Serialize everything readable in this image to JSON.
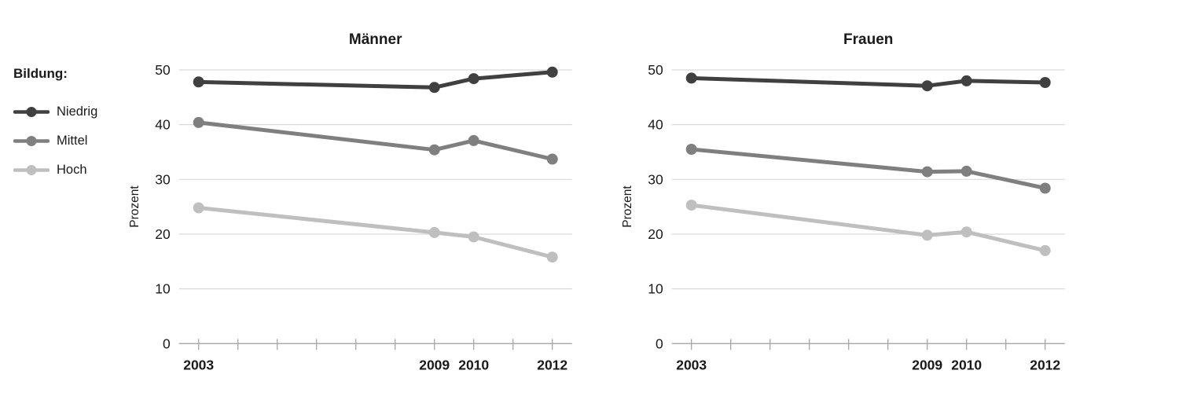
{
  "style": {
    "background": "#ffffff",
    "grid_color": "#d9d9d9",
    "axis_color": "#a6a6a6",
    "text_color": "#1a1a1a",
    "series_colors": {
      "niedrig": "#404040",
      "mittel": "#7f7f7f",
      "hoch": "#bfbfbf"
    }
  },
  "legend": {
    "title": "Bildung:",
    "position": "outside-left",
    "items": [
      {
        "label": "Niedrig",
        "color": "#404040"
      },
      {
        "label": "Mittel",
        "color": "#7f7f7f"
      },
      {
        "label": "Hoch",
        "color": "#bfbfbf"
      }
    ]
  },
  "chart_data": [
    {
      "type": "line",
      "title": "Männer",
      "xlabel": "",
      "ylabel": "Prozent",
      "x": [
        2003,
        2009,
        2010,
        2012
      ],
      "x_tick_labels": [
        "2003",
        "2009",
        "2010",
        "2012"
      ],
      "axis_years": [
        2003,
        2004,
        2005,
        2006,
        2007,
        2008,
        2009,
        2010,
        2011,
        2012
      ],
      "xlim": [
        2002.5,
        2012.5
      ],
      "ylim": [
        0,
        50
      ],
      "yticks": [
        0,
        10,
        20,
        30,
        40,
        50
      ],
      "grid": true,
      "marker": "circle",
      "series": [
        {
          "name": "Niedrig",
          "color": "#404040",
          "values": [
            47.8,
            46.8,
            48.4,
            49.6
          ]
        },
        {
          "name": "Mittel",
          "color": "#7f7f7f",
          "values": [
            40.4,
            35.4,
            37.1,
            33.7
          ]
        },
        {
          "name": "Hoch",
          "color": "#bfbfbf",
          "values": [
            24.8,
            20.3,
            19.5,
            15.8
          ]
        }
      ]
    },
    {
      "type": "line",
      "title": "Frauen",
      "xlabel": "",
      "ylabel": "Prozent",
      "x": [
        2003,
        2009,
        2010,
        2012
      ],
      "x_tick_labels": [
        "2003",
        "2009",
        "2010",
        "2012"
      ],
      "axis_years": [
        2003,
        2004,
        2005,
        2006,
        2007,
        2008,
        2009,
        2010,
        2011,
        2012
      ],
      "xlim": [
        2002.5,
        2012.5
      ],
      "ylim": [
        0,
        50
      ],
      "yticks": [
        0,
        10,
        20,
        30,
        40,
        50
      ],
      "grid": true,
      "marker": "circle",
      "series": [
        {
          "name": "Niedrig",
          "color": "#404040",
          "values": [
            48.5,
            47.1,
            48.0,
            47.7
          ]
        },
        {
          "name": "Mittel",
          "color": "#7f7f7f",
          "values": [
            35.5,
            31.4,
            31.5,
            28.4
          ]
        },
        {
          "name": "Hoch",
          "color": "#bfbfbf",
          "values": [
            25.3,
            19.8,
            20.4,
            17.0
          ]
        }
      ]
    }
  ]
}
